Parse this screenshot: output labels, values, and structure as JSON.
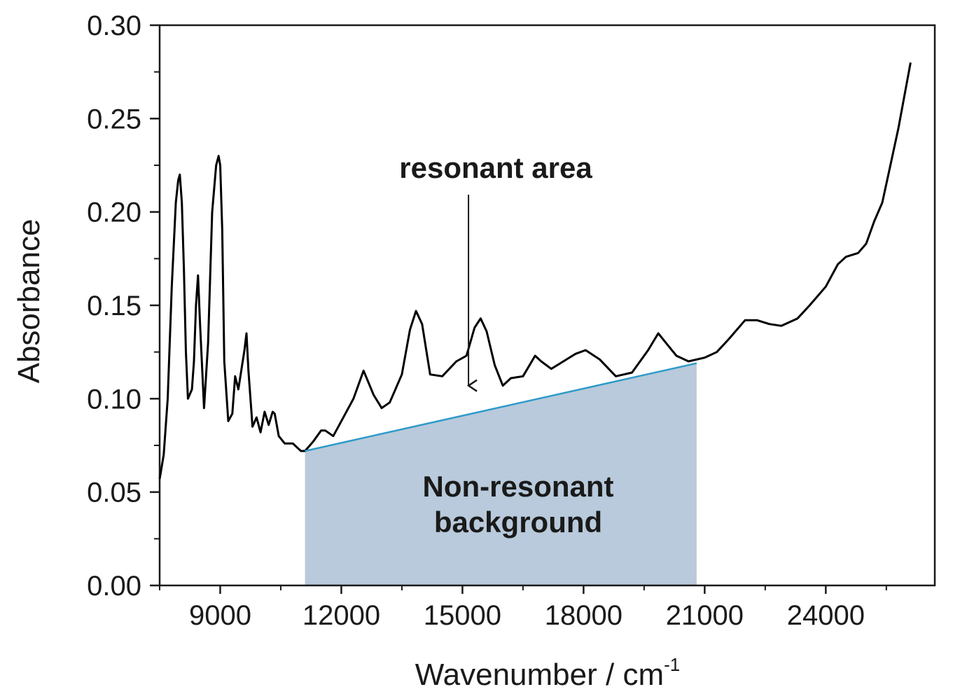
{
  "chart_data": {
    "type": "line",
    "xlabel": "Wavenumber / cm",
    "xlabel_superscript": "-1",
    "ylabel": "Absorbance",
    "xlim": [
      7500,
      26700
    ],
    "ylim": [
      0,
      0.3
    ],
    "x_ticks": [
      9000,
      12000,
      15000,
      18000,
      21000,
      24000
    ],
    "x_tick_labels": [
      "9000",
      "12000",
      "15000",
      "18000",
      "21000",
      "24000"
    ],
    "y_ticks": [
      0.0,
      0.05,
      0.1,
      0.15,
      0.2,
      0.25,
      0.3
    ],
    "y_tick_labels": [
      "0.00",
      "0.05",
      "0.10",
      "0.15",
      "0.20",
      "0.25",
      "0.30"
    ],
    "grid": false,
    "colors": {
      "line": "#000000",
      "baseline": "#2e9ac9",
      "fill": "#b8cadb"
    },
    "series": [
      {
        "x": [
          7500,
          7600,
          7700,
          7800,
          7900,
          7960,
          8000,
          8050,
          8100,
          8150,
          8200,
          8300,
          8350,
          8400,
          8450,
          8500,
          8600,
          8700,
          8800,
          8900,
          8960,
          9000,
          9050,
          9100,
          9200,
          9300,
          9370,
          9450,
          9600,
          9650,
          9700,
          9800,
          9900,
          10000,
          10100,
          10200,
          10300,
          10350,
          10450,
          10600,
          10800,
          10900,
          11000,
          11100,
          11300,
          11500,
          11600,
          11800,
          12000,
          12300,
          12550,
          12800,
          13000,
          13200,
          13500,
          13700,
          13850,
          14000,
          14200,
          14500,
          14850,
          15100,
          15300,
          15450,
          15600,
          15800,
          16000,
          16200,
          16500,
          16800,
          16950,
          17200,
          17500,
          17800,
          18050,
          18400,
          18800,
          19200,
          19600,
          19850,
          20000,
          20300,
          20600,
          21000,
          21300,
          21600,
          22000,
          22300,
          22600,
          22900,
          23300,
          23600,
          24000,
          24300,
          24500,
          24800,
          25000,
          25200,
          25400,
          25600,
          25800,
          26100
        ],
        "y": [
          0.057,
          0.07,
          0.1,
          0.16,
          0.205,
          0.217,
          0.22,
          0.205,
          0.17,
          0.125,
          0.1,
          0.105,
          0.12,
          0.15,
          0.166,
          0.14,
          0.095,
          0.13,
          0.2,
          0.225,
          0.23,
          0.225,
          0.19,
          0.12,
          0.088,
          0.092,
          0.112,
          0.105,
          0.126,
          0.135,
          0.115,
          0.085,
          0.09,
          0.082,
          0.093,
          0.086,
          0.093,
          0.092,
          0.08,
          0.076,
          0.076,
          0.074,
          0.072,
          0.072,
          0.077,
          0.083,
          0.083,
          0.08,
          0.088,
          0.1,
          0.115,
          0.102,
          0.095,
          0.098,
          0.113,
          0.137,
          0.147,
          0.14,
          0.113,
          0.112,
          0.12,
          0.123,
          0.138,
          0.143,
          0.136,
          0.118,
          0.107,
          0.111,
          0.112,
          0.123,
          0.12,
          0.116,
          0.12,
          0.124,
          0.126,
          0.121,
          0.112,
          0.114,
          0.126,
          0.135,
          0.131,
          0.123,
          0.12,
          0.122,
          0.125,
          0.132,
          0.142,
          0.142,
          0.14,
          0.139,
          0.143,
          0.15,
          0.16,
          0.172,
          0.176,
          0.178,
          0.183,
          0.195,
          0.205,
          0.225,
          0.245,
          0.28
        ]
      }
    ],
    "baseline": {
      "x": [
        11100,
        20800
      ],
      "y": [
        0.072,
        0.119
      ]
    },
    "annotations": {
      "resonant": {
        "text": "resonant area",
        "arrow_to": {
          "x": 15150,
          "y": 0.107
        }
      },
      "non_resonant_line1": "Non-resonant",
      "non_resonant_line2": "background"
    }
  }
}
